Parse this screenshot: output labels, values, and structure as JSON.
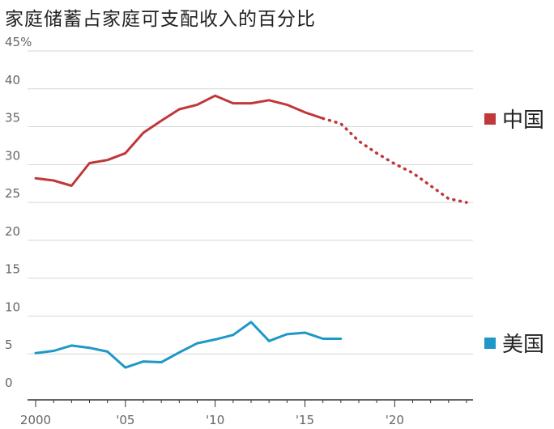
{
  "title": "家庭储蓄占家庭可支配收入的百分比",
  "chart_data": {
    "type": "line",
    "title": "家庭储蓄占家庭可支配收入的百分比",
    "xlabel": "",
    "ylabel": "",
    "xlim": [
      2000,
      2024
    ],
    "ylim": [
      0,
      45
    ],
    "y_ticks": [
      {
        "value": 45,
        "label": "45%"
      },
      {
        "value": 40,
        "label": "40"
      },
      {
        "value": 35,
        "label": "35"
      },
      {
        "value": 30,
        "label": "30"
      },
      {
        "value": 25,
        "label": "25"
      },
      {
        "value": 20,
        "label": "20"
      },
      {
        "value": 15,
        "label": "15"
      },
      {
        "value": 10,
        "label": "10"
      },
      {
        "value": 5,
        "label": "5"
      },
      {
        "value": 0,
        "label": "0"
      }
    ],
    "x_ticks": [
      {
        "value": 2000,
        "label": "2000"
      },
      {
        "value": 2005,
        "label": "'05"
      },
      {
        "value": 2010,
        "label": "'10"
      },
      {
        "value": 2015,
        "label": "'15"
      },
      {
        "value": 2020,
        "label": "'20"
      }
    ],
    "grid": true,
    "legend_placement": "right",
    "series": [
      {
        "name": "中国",
        "color": "#c0383a",
        "x": [
          2000,
          2001,
          2002,
          2003,
          2004,
          2005,
          2006,
          2007,
          2008,
          2009,
          2010,
          2011,
          2012,
          2013,
          2014,
          2015,
          2016
        ],
        "values": [
          28.2,
          27.9,
          27.2,
          30.2,
          30.6,
          31.5,
          34.2,
          35.8,
          37.3,
          37.9,
          39.1,
          38.1,
          38.1,
          38.5,
          37.9,
          36.9,
          36.1
        ],
        "projection": {
          "x": [
            2016,
            2017,
            2018,
            2019,
            2020,
            2021,
            2022,
            2023,
            2024
          ],
          "values": [
            36.1,
            35.4,
            33.1,
            31.5,
            30.1,
            28.9,
            27.2,
            25.5,
            25.0
          ]
        }
      },
      {
        "name": "美国",
        "color": "#1f98c8",
        "x": [
          2000,
          2001,
          2002,
          2003,
          2004,
          2005,
          2006,
          2007,
          2008,
          2009,
          2010,
          2011,
          2012,
          2013,
          2014,
          2015,
          2016,
          2017
        ],
        "values": [
          5.1,
          5.4,
          6.1,
          5.8,
          5.3,
          3.2,
          4.0,
          3.9,
          5.2,
          6.4,
          6.9,
          7.5,
          9.2,
          6.7,
          7.6,
          7.8,
          7.0,
          7.0
        ]
      }
    ]
  }
}
